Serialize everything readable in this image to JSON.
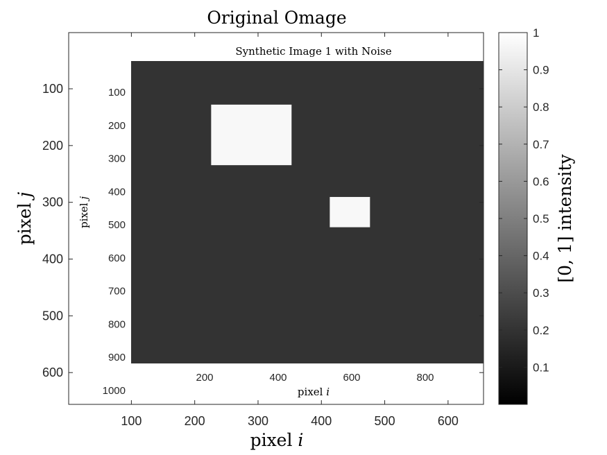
{
  "chart_data": {
    "type": "heatmap",
    "title": "Original Omage",
    "xlabel_main": "pixel",
    "xlabel_main_var": "i",
    "ylabel_main": "pixel",
    "ylabel_main_var": "j",
    "xlim": [
      1,
      656
    ],
    "ylim": [
      1,
      656
    ],
    "xticks": [
      100,
      200,
      300,
      400,
      500,
      600
    ],
    "yticks": [
      100,
      200,
      300,
      400,
      500,
      600
    ],
    "grid": false,
    "colormap": "gray",
    "colorbar": {
      "label": "[0, 1] intensity",
      "range": [
        0,
        1
      ],
      "ticks": [
        "0.1",
        "0.2",
        "0.3",
        "0.4",
        "0.5",
        "0.6",
        "0.7",
        "0.8",
        "0.9",
        "1"
      ]
    },
    "inner_image": {
      "title": "Synthetic Image 1 with Noise",
      "xlabel": "pixel",
      "xlabel_var": "i",
      "ylabel": "pixel",
      "ylabel_var": "j",
      "x_domain": [
        1,
        1000
      ],
      "y_domain": [
        1,
        1000
      ],
      "xticks": [
        200,
        400,
        600,
        800
      ],
      "yticks": [
        100,
        200,
        300,
        400,
        500,
        600,
        700,
        800,
        900,
        1000
      ],
      "background_intensity": 0.2,
      "background_color": "#333333",
      "squares": [
        {
          "i_range": [
            200,
            400
          ],
          "j_range": [
            200,
            400
          ],
          "intensity": 0.97,
          "color": "#f8f8f8"
        },
        {
          "i_range": [
            495,
            595
          ],
          "j_range": [
            505,
            605
          ],
          "intensity": 0.97,
          "color": "#f8f8f8"
        }
      ]
    }
  }
}
